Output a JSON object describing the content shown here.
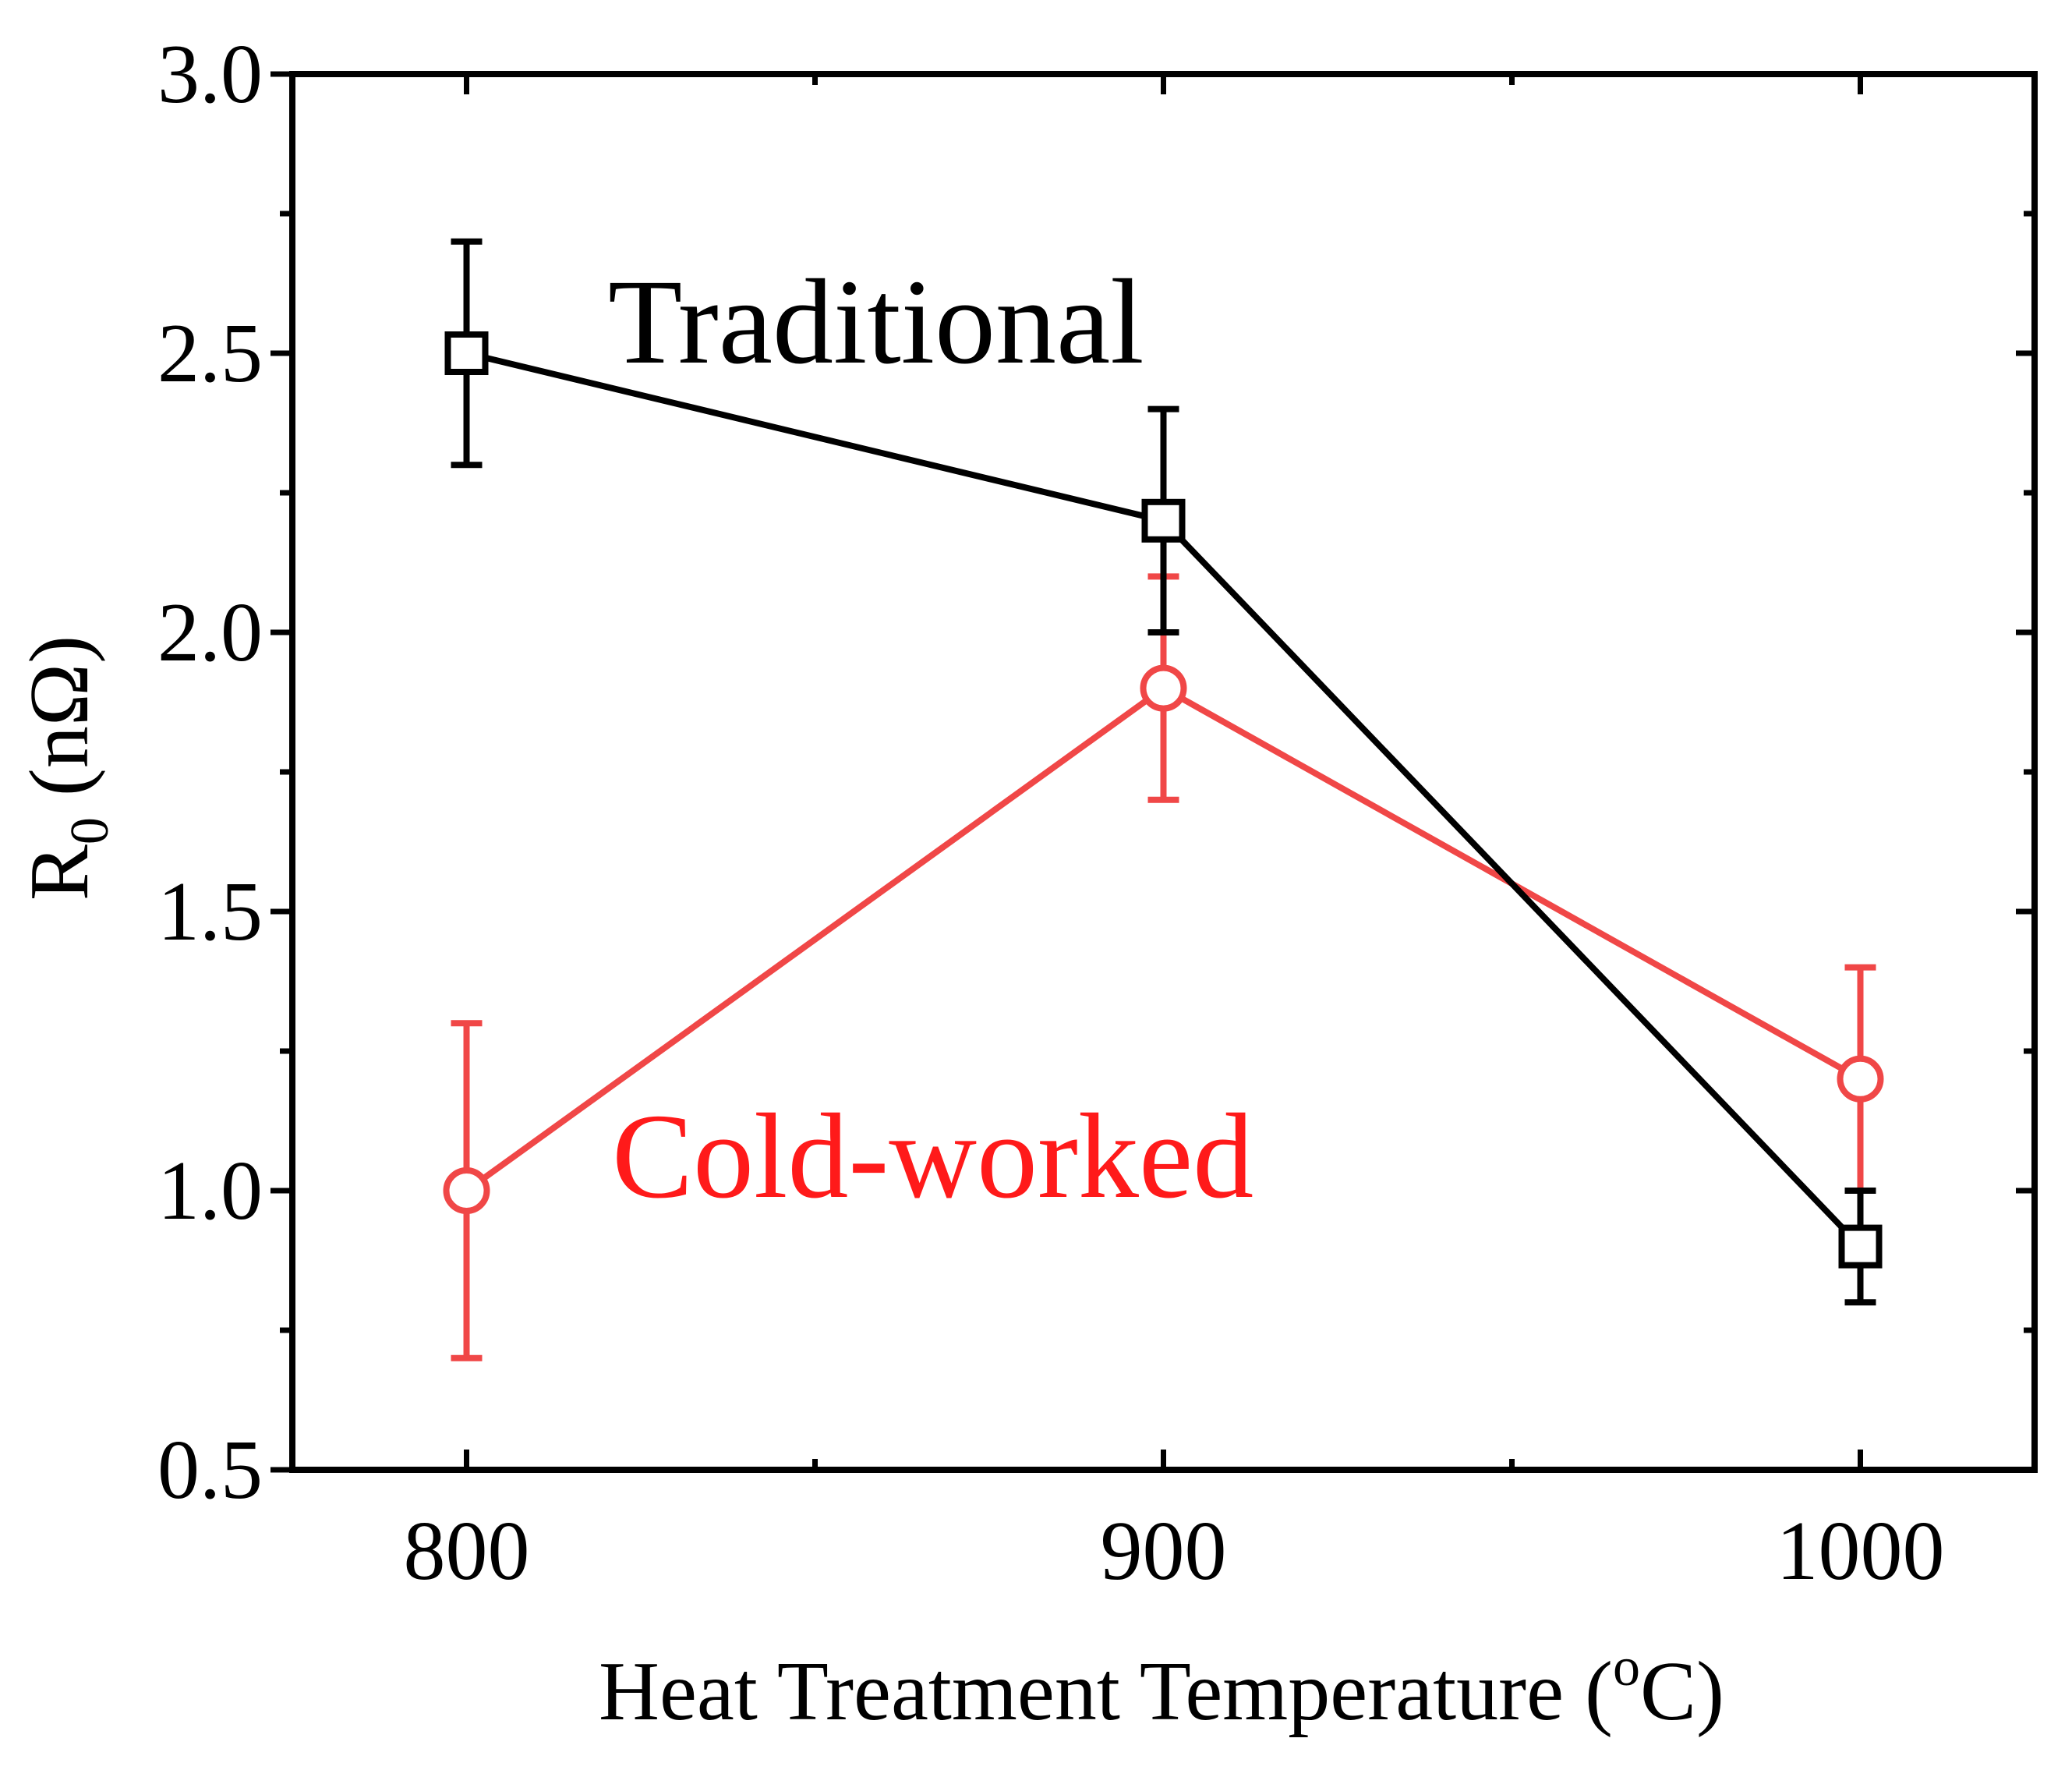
{
  "chart_data": {
    "type": "line",
    "title": "",
    "xlabel": {
      "main": "Heat Treatment Temperature (",
      "sup": "o",
      "tail": "C)"
    },
    "ylabel": {
      "main": "R",
      "sub": "0",
      "tail": " (nΩ)"
    },
    "xlim": [
      775,
      1025
    ],
    "ylim": [
      0.5,
      3.0
    ],
    "x_ticks": [
      800,
      900,
      1000
    ],
    "x_tick_labels": [
      "800",
      "900",
      "1000"
    ],
    "y_ticks": [
      0.5,
      1.0,
      1.5,
      2.0,
      2.5,
      3.0
    ],
    "y_tick_labels": [
      "0.5",
      "1.0",
      "1.5",
      "2.0",
      "2.5",
      "3.0"
    ],
    "grid": false,
    "series": [
      {
        "name": "Traditional",
        "color": "#000000",
        "marker": "square",
        "x": [
          800,
          900,
          1000
        ],
        "y": [
          2.5,
          2.2,
          0.9
        ],
        "y_err_low": [
          2.3,
          2.0,
          0.8
        ],
        "y_err_high": [
          2.7,
          2.4,
          1.0
        ]
      },
      {
        "name": "Cold-worked",
        "color": "#f04747",
        "label_color": "#ff1a1a",
        "marker": "circle",
        "x": [
          800,
          900,
          1000
        ],
        "y": [
          1.0,
          1.9,
          1.2
        ],
        "y_err_low": [
          0.7,
          1.7,
          1.0
        ],
        "y_err_high": [
          1.3,
          2.1,
          1.4
        ]
      }
    ]
  }
}
